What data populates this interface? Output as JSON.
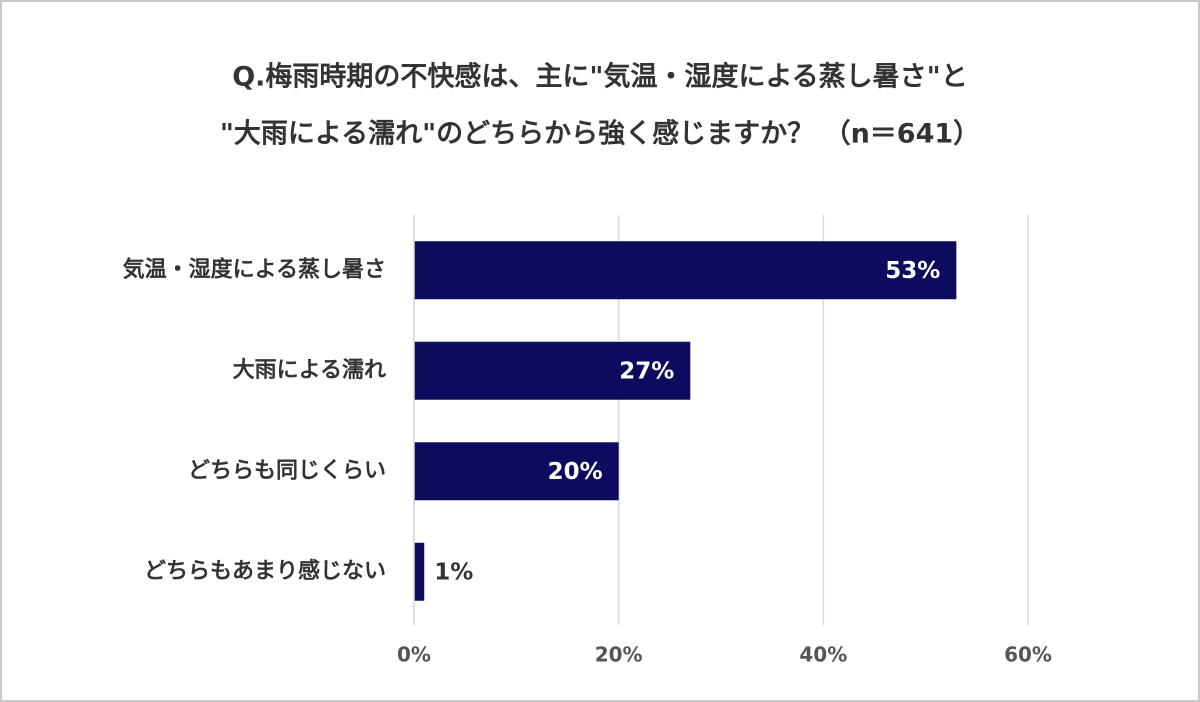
{
  "chart_data": {
    "type": "bar",
    "orientation": "horizontal",
    "title": [
      "Q.梅雨時期の不快感は、主に\"気温・湿度による蒸し暑さ\"と",
      "\"大雨による濡れ\"のどちらから強く感じますか？ （n＝641）"
    ],
    "categories": [
      "気温・湿度による蒸し暑さ",
      "大雨による濡れ",
      "どちらも同じくらい",
      "どちらもあまり感じない"
    ],
    "values": [
      53,
      27,
      20,
      1
    ],
    "value_labels": [
      "53%",
      "27%",
      "20%",
      "1%"
    ],
    "color": "#0e0b5e",
    "xlim": [
      0,
      60
    ],
    "xticks": [
      {
        "value": 0,
        "label": "0%"
      },
      {
        "value": 20,
        "label": "20%"
      },
      {
        "value": 40,
        "label": "40%"
      },
      {
        "value": 60,
        "label": "60%"
      }
    ],
    "grid": true
  }
}
